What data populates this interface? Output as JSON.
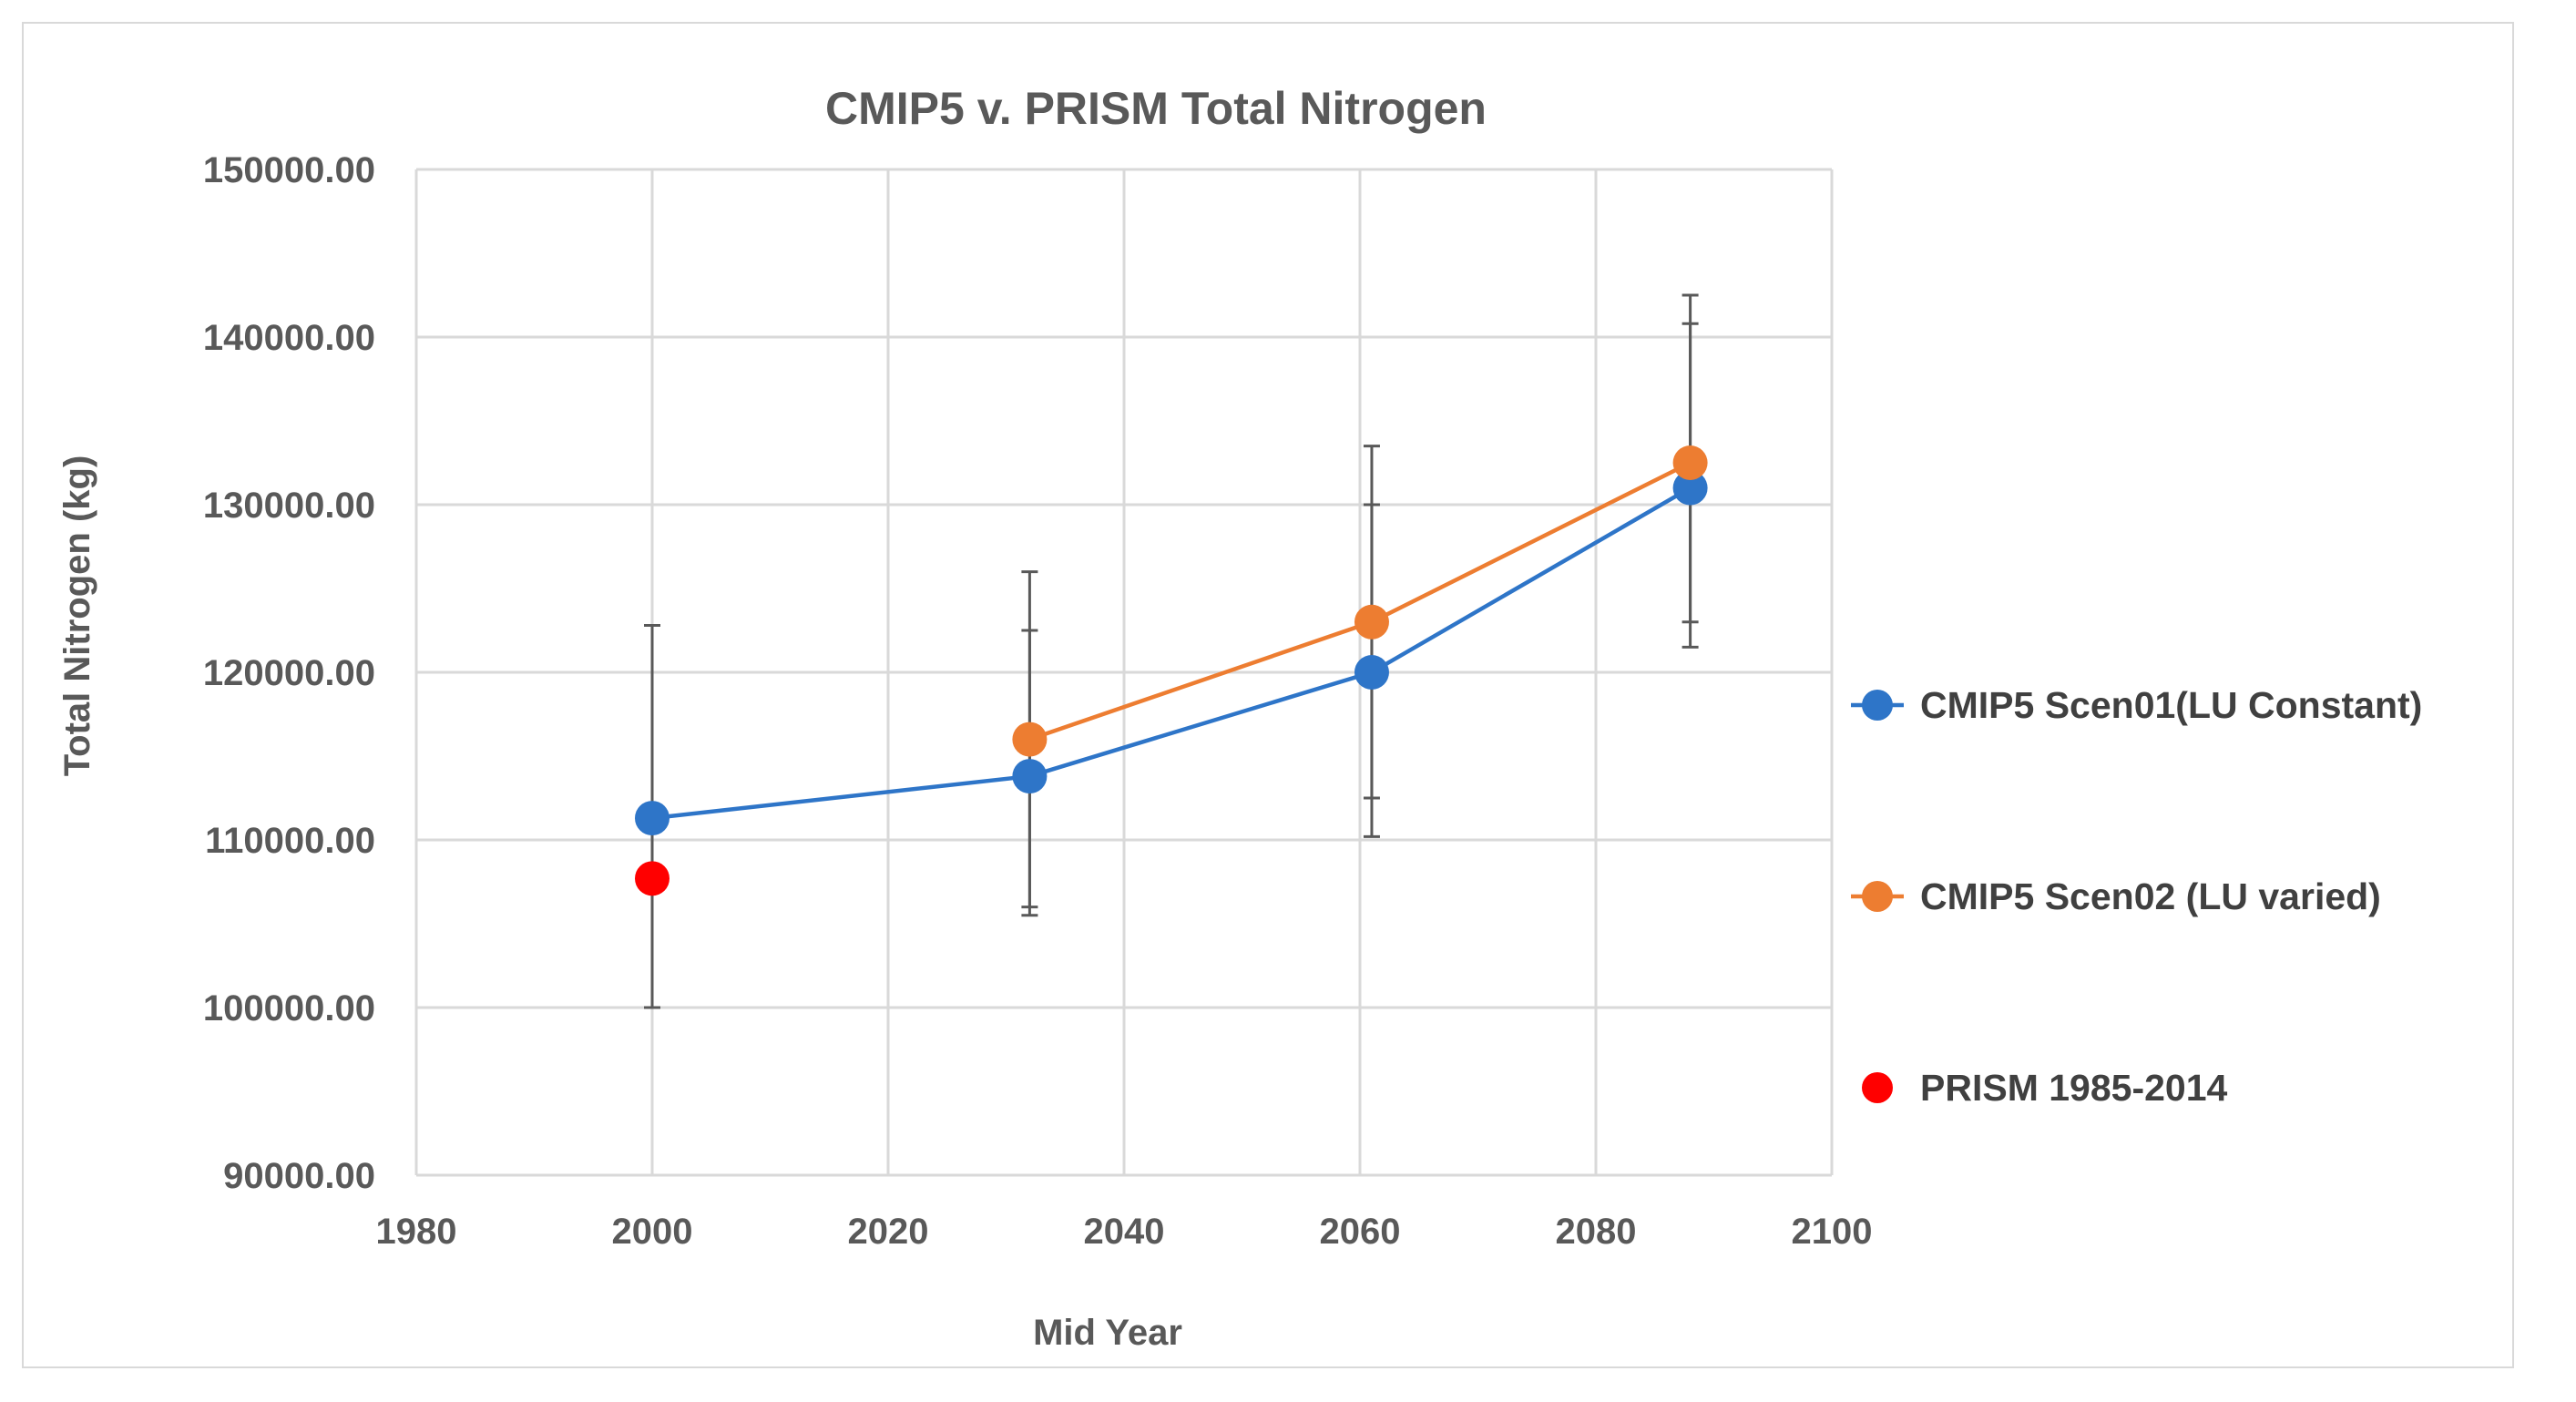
{
  "chart_data": {
    "type": "line",
    "title": "CMIP5 v. PRISM Total Nitrogen",
    "xlabel": "Mid Year",
    "ylabel": "Total Nitrogen (kg)",
    "xlim": [
      1980,
      2100
    ],
    "ylim": [
      90000,
      150000
    ],
    "x_ticks": [
      1980,
      2000,
      2020,
      2040,
      2060,
      2080,
      2100
    ],
    "x_tick_labels": [
      "1980",
      "2000",
      "2020",
      "2040",
      "2060",
      "2080",
      "2100"
    ],
    "y_ticks": [
      90000,
      100000,
      110000,
      120000,
      130000,
      140000,
      150000
    ],
    "y_tick_labels": [
      "90000.00",
      "100000.00",
      "110000.00",
      "120000.00",
      "130000.00",
      "140000.00",
      "150000.00"
    ],
    "grid": true,
    "legend_position": "right",
    "series": [
      {
        "name": "CMIP5 Scen01(LU Constant)",
        "color": "#2e75c8",
        "line": true,
        "x": [
          2000,
          2032,
          2061,
          2088
        ],
        "y": [
          111300,
          113800,
          120000,
          131000
        ],
        "err_low": [
          100000,
          106000,
          110200,
          121500
        ],
        "err_high": [
          122800,
          122500,
          130000,
          140800
        ]
      },
      {
        "name": "CMIP5 Scen02 (LU varied)",
        "color": "#ed7d31",
        "line": true,
        "x": [
          2032,
          2061,
          2088
        ],
        "y": [
          116000,
          123000,
          132500
        ],
        "err_low": [
          105500,
          112500,
          123000
        ],
        "err_high": [
          126000,
          133500,
          142500
        ]
      },
      {
        "name": "PRISM 1985-2014",
        "color": "#ff0000",
        "line": false,
        "x": [
          2000
        ],
        "y": [
          107700
        ],
        "err_low": [],
        "err_high": []
      }
    ]
  }
}
